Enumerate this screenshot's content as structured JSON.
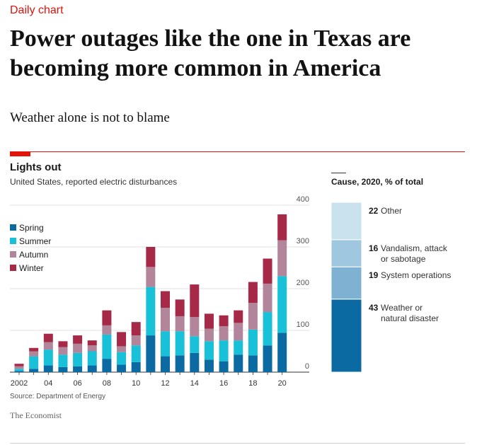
{
  "header": {
    "kicker": "Daily chart",
    "headline": "Power outages like the one in Texas are becoming more common in America",
    "standfirst": "Weather alone is not to blame"
  },
  "chart_data": [
    {
      "type": "bar",
      "stacked": true,
      "title": "Lights out",
      "subtitle": "United States, reported electric disturbances",
      "x": [
        2002,
        2003,
        2004,
        2005,
        2006,
        2007,
        2008,
        2009,
        2010,
        2011,
        2012,
        2013,
        2014,
        2015,
        2016,
        2017,
        2018,
        2019,
        2020
      ],
      "x_tick_labels": [
        {
          "x": 2002,
          "label": "2002"
        },
        {
          "x": 2004,
          "label": "04"
        },
        {
          "x": 2006,
          "label": "06"
        },
        {
          "x": 2008,
          "label": "08"
        },
        {
          "x": 2010,
          "label": "10"
        },
        {
          "x": 2012,
          "label": "12"
        },
        {
          "x": 2014,
          "label": "14"
        },
        {
          "x": 2016,
          "label": "16"
        },
        {
          "x": 2018,
          "label": "18"
        },
        {
          "x": 2020,
          "label": "20"
        }
      ],
      "series": [
        {
          "name": "Spring",
          "color": "#0b6aa2",
          "values": [
            3,
            8,
            16,
            12,
            14,
            16,
            32,
            18,
            24,
            88,
            38,
            40,
            46,
            30,
            26,
            42,
            40,
            64,
            94
          ]
        },
        {
          "name": "Summer",
          "color": "#18c1d8",
          "values": [
            5,
            30,
            38,
            30,
            32,
            34,
            58,
            30,
            40,
            116,
            60,
            58,
            40,
            44,
            50,
            34,
            62,
            80,
            136
          ]
        },
        {
          "name": "Autumn",
          "color": "#b2859a",
          "values": [
            6,
            12,
            18,
            18,
            22,
            14,
            22,
            14,
            24,
            48,
            56,
            36,
            46,
            30,
            34,
            42,
            64,
            68,
            86
          ]
        },
        {
          "name": "Winter",
          "color": "#a62948",
          "values": [
            6,
            8,
            20,
            14,
            20,
            12,
            36,
            34,
            32,
            48,
            40,
            40,
            78,
            36,
            26,
            30,
            50,
            60,
            62
          ]
        }
      ],
      "ylim": [
        0,
        400
      ],
      "y_ticks": [
        0,
        100,
        200,
        300,
        400
      ],
      "grid": true,
      "legend": "top-left"
    },
    {
      "type": "bar",
      "stacked": true,
      "title": "Cause, 2020, % of total",
      "series": [
        {
          "name": "Weather or natural disaster",
          "value": 43,
          "color": "#0b6aa2"
        },
        {
          "name": "System operations",
          "value": 19,
          "color": "#7fb2d2"
        },
        {
          "name": "Vandalism, attack or sabotage",
          "value": 16,
          "color": "#9fc8e0"
        },
        {
          "name": "Other",
          "value": 22,
          "color": "#c9e2ee"
        }
      ]
    }
  ],
  "footer": {
    "source": "Source: Department of Energy",
    "brand": "The Economist"
  }
}
